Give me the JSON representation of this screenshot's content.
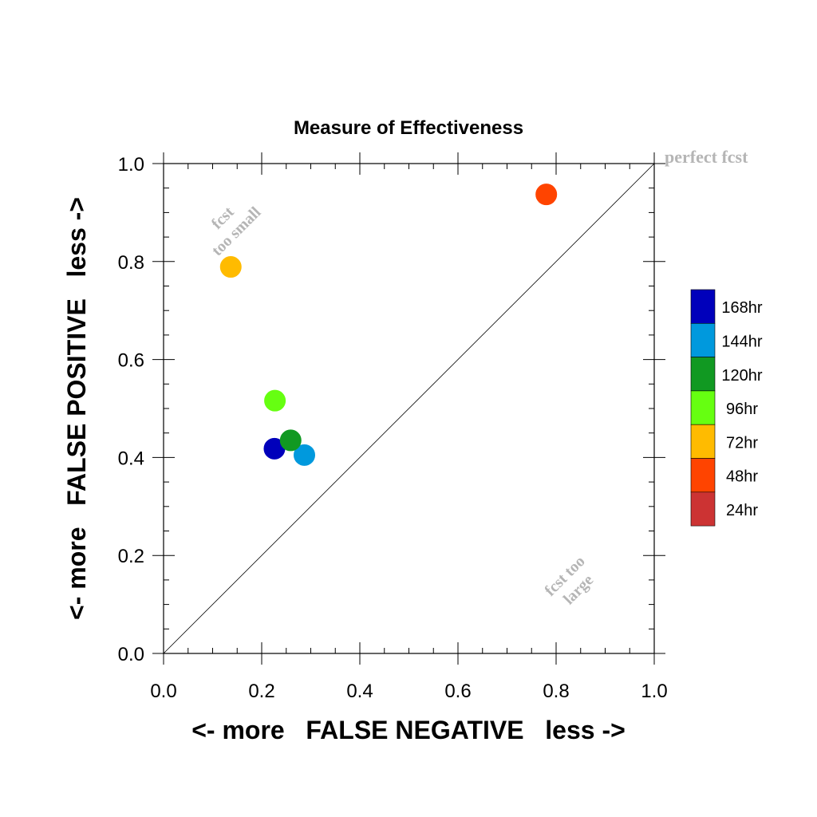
{
  "chart_data": {
    "type": "scatter",
    "title": "Measure of Effectiveness",
    "xlabel": "<- more   FALSE NEGATIVE   less ->",
    "ylabel": "<- more   FALSE POSITIVE   less ->",
    "xlim": [
      0,
      1
    ],
    "ylim": [
      0,
      1
    ],
    "x_ticks": [
      "0.0",
      "0.2",
      "0.4",
      "0.6",
      "0.8",
      "1.0"
    ],
    "y_ticks": [
      "0.0",
      "0.2",
      "0.4",
      "0.6",
      "0.8",
      "1.0"
    ],
    "tick_values": [
      0,
      0.2,
      0.4,
      0.6,
      0.8,
      1.0
    ],
    "grid": false,
    "diagonal_reference_line": true,
    "annotations": {
      "perfect": "perfect fcst",
      "too_small": [
        "fcst",
        "too small"
      ],
      "too_large": [
        "fcst too",
        "large"
      ]
    },
    "legend_position": "right",
    "series": [
      {
        "name": "168hr",
        "color": "#0000bb",
        "x": 0.226,
        "y": 0.418
      },
      {
        "name": "144hr",
        "color": "#0099dd",
        "x": 0.287,
        "y": 0.405
      },
      {
        "name": "120hr",
        "color": "#119922",
        "x": 0.259,
        "y": 0.435
      },
      {
        "name": "96hr",
        "color": "#66ff11",
        "x": 0.227,
        "y": 0.516
      },
      {
        "name": "72hr",
        "color": "#ffbb00",
        "x": 0.137,
        "y": 0.789
      },
      {
        "name": "48hr",
        "color": "#ff4400",
        "x": 0.78,
        "y": 0.937
      },
      {
        "name": "24hr",
        "color": "#cc3333",
        "x": null,
        "y": null
      }
    ]
  }
}
